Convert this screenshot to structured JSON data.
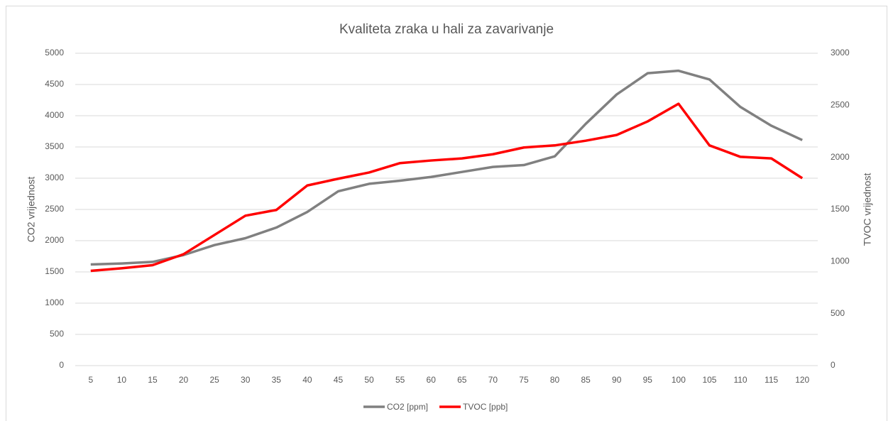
{
  "chart_data": {
    "type": "line",
    "title": "Kvaliteta zraka u hali za zavarivanje",
    "y_label": "CO2 vrijednost",
    "y2_label": "TVOC vrijednost",
    "categories": [
      "5",
      "10",
      "15",
      "20",
      "25",
      "30",
      "35",
      "40",
      "45",
      "50",
      "55",
      "60",
      "65",
      "70",
      "75",
      "80",
      "85",
      "90",
      "95",
      "100",
      "105",
      "110",
      "115",
      "120"
    ],
    "series": [
      {
        "name": "CO2 [ppm]",
        "color": "#808080",
        "values": [
          1620,
          1635,
          1660,
          1770,
          1930,
          2040,
          2210,
          2460,
          2790,
          2910,
          2960,
          3020,
          3100,
          3180,
          3210,
          3350,
          3870,
          4340,
          4680,
          4720,
          4580,
          4140,
          3840,
          3610
        ]
      },
      {
        "name": "TVOC [ppb]",
        "color": "#ff0000",
        "axis": "y2",
        "values": [
          910,
          935,
          965,
          1070,
          1255,
          1440,
          1495,
          1730,
          1795,
          1855,
          1945,
          1970,
          1990,
          2030,
          2095,
          2115,
          2160,
          2215,
          2345,
          2515,
          2115,
          2005,
          1990,
          1800
        ]
      }
    ],
    "ylim": [
      0,
      5000
    ],
    "yticks": [
      0,
      500,
      1000,
      1500,
      2000,
      2500,
      3000,
      3500,
      4000,
      4500,
      5000
    ],
    "y2lim": [
      0,
      3000
    ],
    "y2ticks": [
      0,
      500,
      1000,
      1500,
      2000,
      2500,
      3000
    ],
    "grid": true,
    "legend": "bottom"
  }
}
